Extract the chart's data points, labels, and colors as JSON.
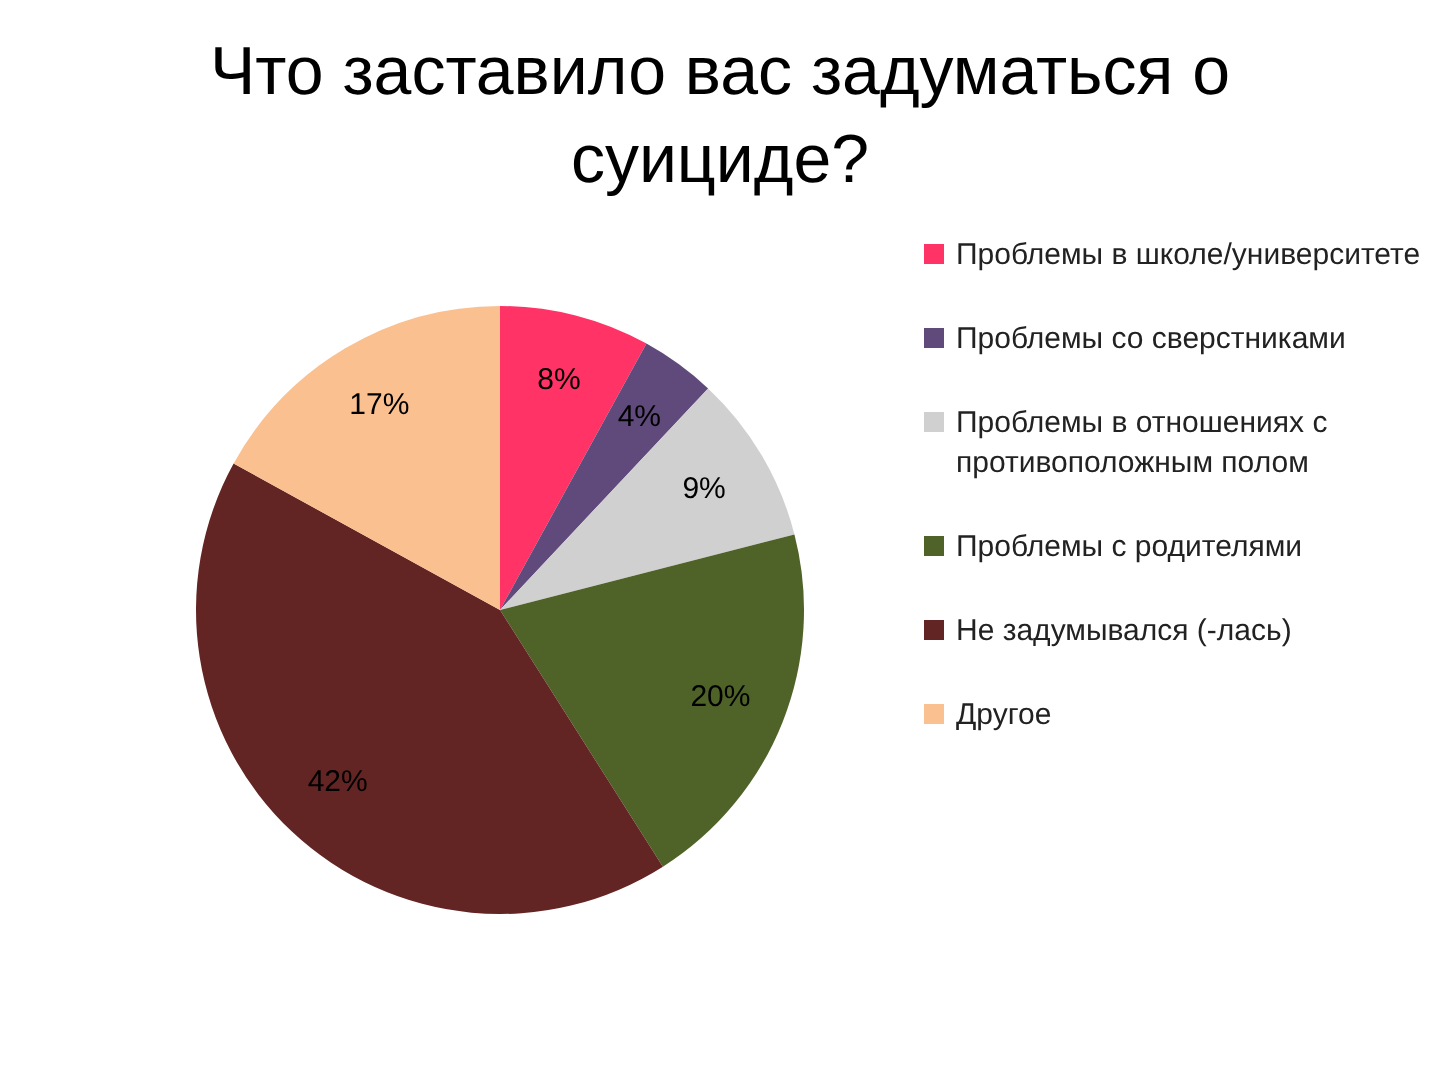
{
  "chart_data": {
    "type": "pie",
    "title": "Что заставило вас задуматься о суициде?",
    "categories": [
      "Проблемы в школе/университете",
      "Проблемы со сверстниками",
      "Проблемы в отношениях с противоположным полом",
      "Проблемы с родителями",
      "Не задумывался (-лась)",
      "Другое"
    ],
    "values": [
      8,
      4,
      9,
      20,
      42,
      17
    ],
    "colors": [
      "#ff3366",
      "#604a7b",
      "#d0d0d0",
      "#4f6228",
      "#632523",
      "#fac090"
    ],
    "value_labels": [
      "8%",
      "4%",
      "9%",
      "20%",
      "42%",
      "17%"
    ],
    "legend": "right"
  }
}
